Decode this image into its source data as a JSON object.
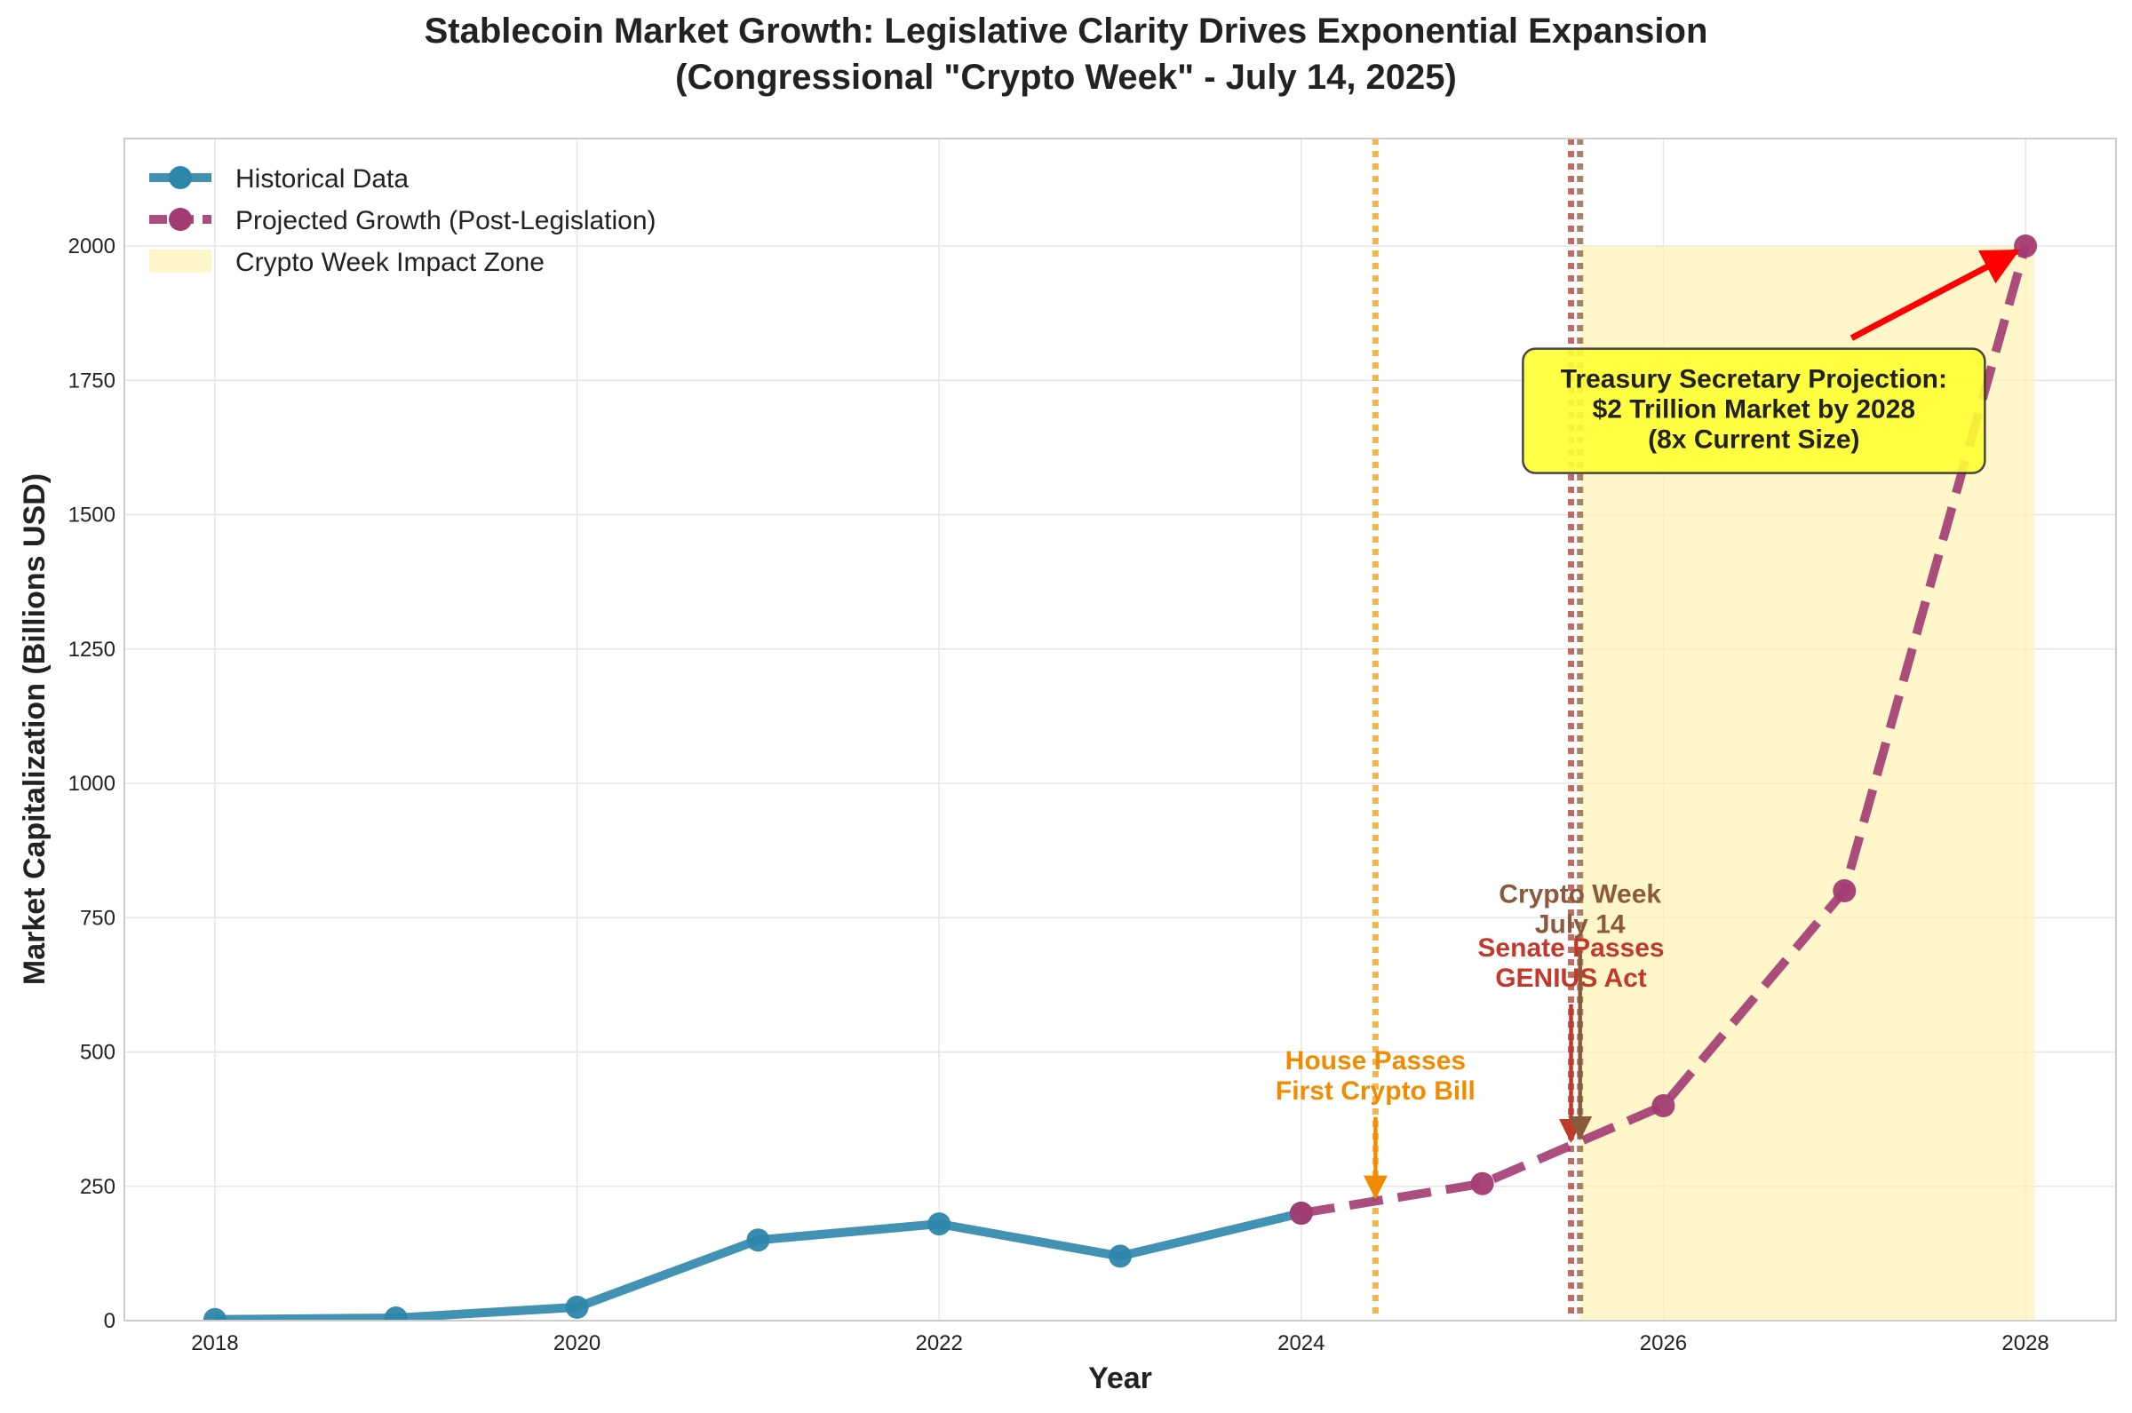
{
  "chart_data": {
    "type": "line",
    "title": "Stablecoin Market Growth: Legislative Clarity Drives Exponential Expansion",
    "subtitle": "(Congressional \"Crypto Week\" - July 14, 2025)",
    "xlabel": "Year",
    "ylabel": "Market Capitalization (Billions USD)",
    "xlim": [
      2017.5,
      2028.5
    ],
    "ylim": [
      0,
      2200
    ],
    "x_ticks": [
      2018,
      2020,
      2022,
      2024,
      2026,
      2028
    ],
    "y_ticks": [
      0,
      250,
      500,
      750,
      1000,
      1250,
      1500,
      1750,
      2000
    ],
    "grid": true,
    "legend_position": "top-left",
    "series": [
      {
        "name": "Historical Data",
        "color": "#2e86ab",
        "style": "solid",
        "x": [
          2018,
          2019,
          2020,
          2021,
          2022,
          2023,
          2024
        ],
        "values": [
          2,
          5,
          25,
          150,
          180,
          120,
          200
        ]
      },
      {
        "name": "Projected Growth (Post-Legislation)",
        "color": "#a23b72",
        "style": "dashed",
        "x": [
          2024,
          2025,
          2026,
          2027,
          2028
        ],
        "values": [
          200,
          255,
          400,
          800,
          2000
        ]
      }
    ],
    "shaded_region": {
      "name": "Crypto Week Impact Zone",
      "x_start": 2025.54,
      "x_end": 2028.05,
      "y_end": 2000,
      "color": "#fff2b3"
    },
    "vertical_lines": [
      {
        "x": 2024.41,
        "color": "#f39c12"
      },
      {
        "x": 2025.49,
        "color": "#b03a2e"
      },
      {
        "x": 2025.54,
        "color": "#8b5a3c"
      }
    ],
    "annotations": [
      {
        "lines": [
          "House Passes",
          "First Crypto Bill"
        ],
        "text_x": 2024.41,
        "text_y": 440,
        "arrow_x": 2024.41,
        "arrow_y": 225,
        "color": "#f08c00"
      },
      {
        "lines": [
          "Senate Passes",
          "GENIUS Act"
        ],
        "text_x": 2025.49,
        "text_y": 650,
        "arrow_x": 2025.49,
        "arrow_y": 330,
        "color": "#c0392b"
      },
      {
        "lines": [
          "Crypto Week",
          "July 14"
        ],
        "text_x": 2025.54,
        "text_y": 750,
        "arrow_x": 2025.54,
        "arrow_y": 335,
        "color": "#8b5a3c"
      },
      {
        "lines": [
          "Treasury Secretary Projection:",
          "$2 Trillion Market by 2028",
          "(8x Current Size)"
        ],
        "text_x": 2026.5,
        "text_y": 1680,
        "arrow_x": 2028,
        "arrow_y": 2000,
        "color": "#ff0000",
        "box_color": "#ffff33"
      }
    ]
  }
}
